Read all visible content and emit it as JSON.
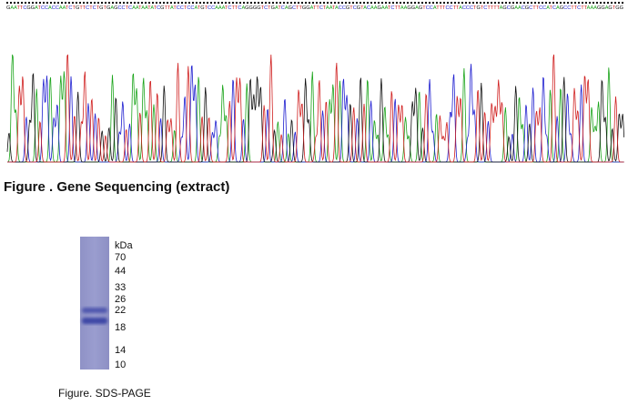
{
  "sequencing": {
    "sequence": "GAATTCGGATCCACCAATCTGTTCTCTGTGAGCCTCAATAATATCGTTATCCTCCATGTCCAAATCTTCAGGGGTCTGATCAGCTTGGATTCTAATACCGTCGTACAAGAATCTTAAGGAGTCCATTTCCTTACCCTGTCTTTTAGCGAACGCTTCCATCAGCCTTCTTAAAGGAGTGG",
    "caption": "Figure . Gene Sequencing (extract)"
  },
  "sds_page": {
    "unit": "kDa",
    "markers": [
      "70",
      "44",
      "33",
      "26",
      "22",
      "18",
      "14",
      "10"
    ],
    "caption": "Figure. SDS-PAGE"
  }
}
